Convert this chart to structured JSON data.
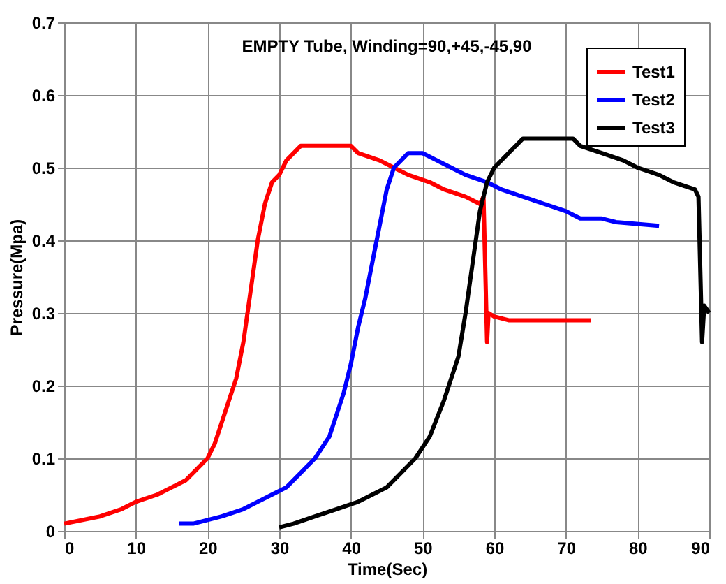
{
  "chart_data": {
    "type": "line",
    "title": "EMPTY Tube, Winding=90,+45,-45,90",
    "xlabel": "Time(Sec)",
    "ylabel": "Pressure(Mpa)",
    "xlim": [
      0,
      90
    ],
    "ylim": [
      0,
      0.7
    ],
    "xticks": [
      0,
      10,
      20,
      30,
      40,
      50,
      60,
      70,
      80,
      90
    ],
    "yticks": [
      0,
      0.1,
      0.2,
      0.3,
      0.4,
      0.5,
      0.6,
      0.7
    ],
    "grid": true,
    "legend": "top right",
    "line_style": "solid",
    "marker": "none",
    "series": [
      {
        "name": "Test1",
        "color": "#ff0000",
        "x": [
          0,
          5,
          8,
          10,
          13,
          15,
          17,
          19,
          20,
          21,
          22,
          23,
          24,
          25,
          26,
          27,
          28,
          29,
          30,
          31,
          33,
          40,
          41,
          44,
          46,
          48,
          51,
          53,
          56,
          58,
          58.5,
          59,
          59.2,
          60,
          62,
          73.5
        ],
        "values": [
          0.01,
          0.02,
          0.03,
          0.04,
          0.05,
          0.06,
          0.07,
          0.09,
          0.1,
          0.12,
          0.15,
          0.18,
          0.21,
          0.26,
          0.33,
          0.4,
          0.45,
          0.48,
          0.49,
          0.51,
          0.53,
          0.53,
          0.52,
          0.51,
          0.5,
          0.49,
          0.48,
          0.47,
          0.46,
          0.45,
          0.46,
          0.26,
          0.3,
          0.295,
          0.29,
          0.29
        ]
      },
      {
        "name": "Test2",
        "color": "#0000ff",
        "x": [
          16,
          18,
          20,
          22,
          25,
          27,
          29,
          31,
          33,
          35,
          37,
          38,
          39,
          40,
          41,
          42,
          43,
          44,
          45,
          46,
          47,
          48,
          50,
          52,
          54,
          56,
          59,
          61,
          64,
          67,
          70,
          72,
          75,
          77,
          83
        ],
        "values": [
          0.01,
          0.01,
          0.015,
          0.02,
          0.03,
          0.04,
          0.05,
          0.06,
          0.08,
          0.1,
          0.13,
          0.16,
          0.19,
          0.23,
          0.28,
          0.32,
          0.37,
          0.42,
          0.47,
          0.5,
          0.51,
          0.52,
          0.52,
          0.51,
          0.5,
          0.49,
          0.48,
          0.47,
          0.46,
          0.45,
          0.44,
          0.43,
          0.43,
          0.425,
          0.42
        ]
      },
      {
        "name": "Test3",
        "color": "#000000",
        "x": [
          30,
          32,
          35,
          38,
          41,
          43,
          45,
          47,
          49,
          51,
          53,
          55,
          56,
          57,
          58,
          59,
          60,
          62,
          63,
          64,
          71,
          72,
          75,
          78,
          80,
          83,
          85,
          88,
          88.5,
          89,
          89.3,
          90
        ],
        "values": [
          0.005,
          0.01,
          0.02,
          0.03,
          0.04,
          0.05,
          0.06,
          0.08,
          0.1,
          0.13,
          0.18,
          0.24,
          0.3,
          0.37,
          0.44,
          0.48,
          0.5,
          0.52,
          0.53,
          0.54,
          0.54,
          0.53,
          0.52,
          0.51,
          0.5,
          0.49,
          0.48,
          0.47,
          0.46,
          0.26,
          0.31,
          0.3
        ]
      }
    ]
  }
}
